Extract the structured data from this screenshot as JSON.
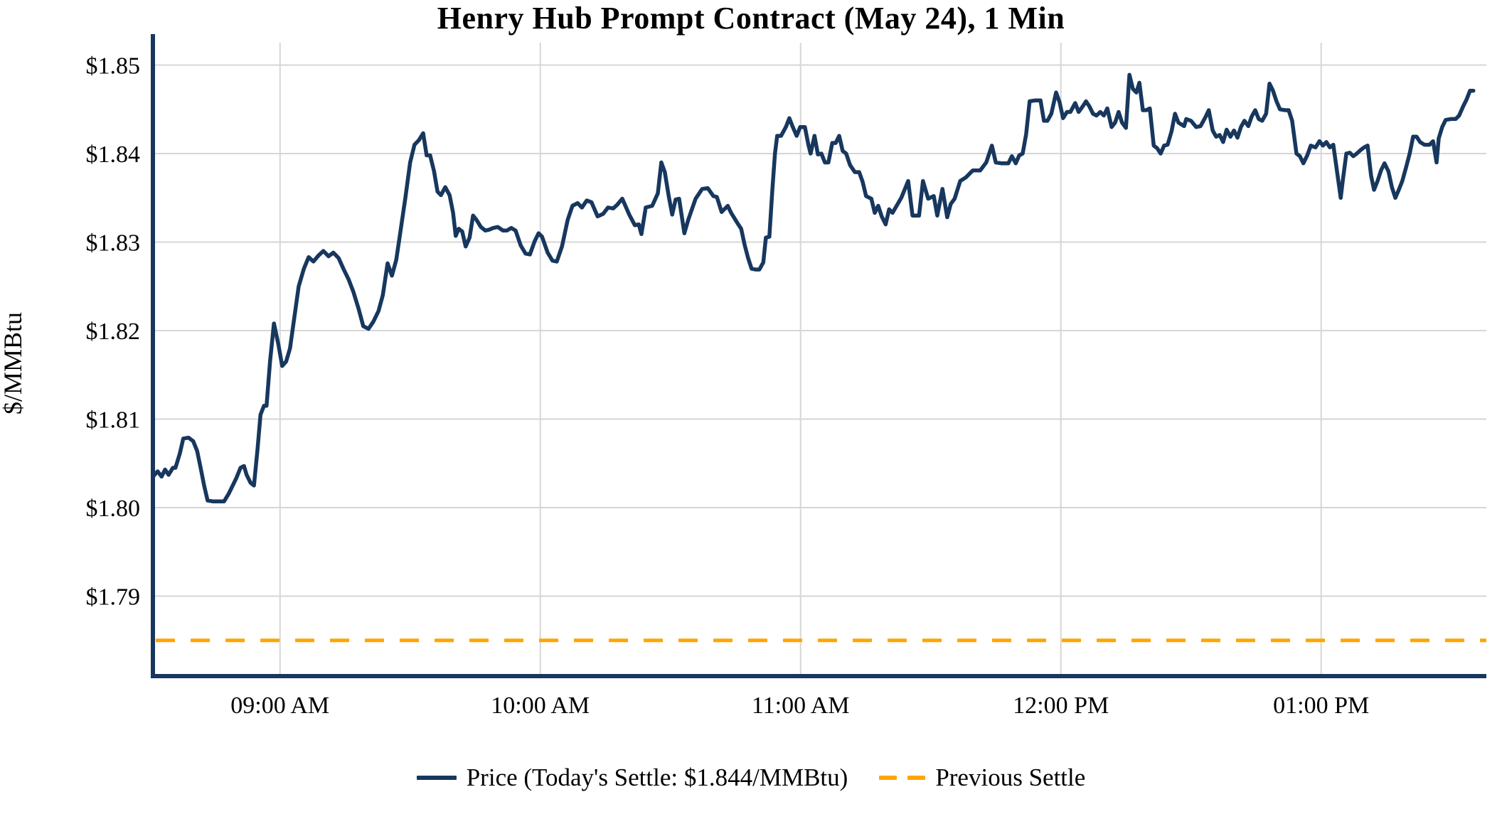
{
  "title": "Henry Hub Prompt Contract (May 24), 1 Min",
  "legend": {
    "price_label": "Price (Today's Settle: $1.844/MMBtu)",
    "previous_settle_label": "Previous Settle"
  },
  "colors": {
    "price_line": "#17375e",
    "previous_settle_line": "#ffa500",
    "grid": "#d6d6d6",
    "axis_spine": "#17375e",
    "text": "#000000"
  },
  "todays_settle_value": 1.844,
  "previous_settle_value": 1.785,
  "chart_data": {
    "type": "line",
    "title": "Henry Hub Prompt Contract (May 24), 1 Min",
    "xlabel": "",
    "ylabel": "$/MMBtu",
    "ylim": [
      1.781,
      1.8525
    ],
    "x_domain_minutes": [
      0,
      304.4
    ],
    "grid": true,
    "legend_position": "bottom-center",
    "y_axis": {
      "ticks": [
        {
          "label": "$1.79",
          "value": 1.79
        },
        {
          "label": "$1.80",
          "value": 1.8
        },
        {
          "label": "$1.81",
          "value": 1.81
        },
        {
          "label": "$1.82",
          "value": 1.82
        },
        {
          "label": "$1.83",
          "value": 1.83
        },
        {
          "label": "$1.84",
          "value": 1.84
        },
        {
          "label": "$1.85",
          "value": 1.85
        }
      ]
    },
    "x_axis": {
      "ticks": [
        {
          "label": "09:00 AM",
          "minute": 29.3
        },
        {
          "label": "10:00 AM",
          "minute": 89.3
        },
        {
          "label": "11:00 AM",
          "minute": 149.3
        },
        {
          "label": "12:00 PM",
          "minute": 209.3
        },
        {
          "label": "01:00 PM",
          "minute": 269.3
        }
      ],
      "start_time": "08:31 AM",
      "end_time": "01:35 PM"
    },
    "series": [
      {
        "name": "Price",
        "x_minutes": [
          0,
          1.1,
          2,
          2.8,
          3.6,
          4.6,
          5.2,
          6.2,
          7,
          8.2,
          9.3,
          10.2,
          11,
          11.8,
          12.6,
          13.9,
          15.2,
          16.4,
          17.5,
          19.2,
          20.2,
          21,
          21.6,
          22.5,
          23.3,
          24.1,
          24.8,
          25.6,
          26.2,
          27,
          27.9,
          28.9,
          29.8,
          30.7,
          31.6,
          32.6,
          33.6,
          34.8,
          35.9,
          37,
          38.2,
          39.3,
          40.5,
          41.6,
          42.8,
          43.9,
          45.1,
          46.2,
          47.4,
          48.5,
          49.7,
          50.8,
          52,
          53,
          54.1,
          55.1,
          56.1,
          57,
          58.2,
          59.3,
          60.3,
          61.3,
          62.3,
          63.1,
          63.9,
          64.8,
          65.6,
          66.4,
          67.4,
          68.4,
          69.2,
          69.8,
          70.5,
          71.3,
          72.1,
          73,
          73.8,
          74.6,
          75.6,
          76.6,
          77.5,
          78.5,
          79.5,
          80.7,
          81.6,
          82.6,
          83.6,
          84.8,
          85.9,
          86.9,
          88,
          88.9,
          89.7,
          91,
          92.1,
          93.1,
          94.3,
          95.6,
          96.7,
          97.9,
          98.9,
          100,
          101.1,
          102.5,
          103.8,
          104.9,
          106.1,
          107,
          108.2,
          109.8,
          111.1,
          112,
          112.6,
          113.6,
          115.1,
          116.4,
          117.2,
          118,
          118.9,
          119.7,
          120.5,
          121.3,
          122.5,
          123.4,
          125.1,
          126.6,
          127.9,
          129.2,
          130,
          131.1,
          132.5,
          133.3,
          134.8,
          135.6,
          136.4,
          137.2,
          138,
          138.9,
          139.8,
          140.7,
          141.3,
          142.1,
          142.8,
          143.4,
          143.9,
          144.8,
          145.9,
          146.7,
          147.5,
          148.4,
          149.2,
          150.3,
          151.1,
          151.6,
          152.5,
          153.3,
          154.1,
          154.9,
          155.7,
          156.6,
          157.4,
          158.2,
          159,
          159.8,
          160.7,
          161.8,
          162.8,
          163.6,
          164.4,
          165.6,
          166.4,
          167.2,
          168,
          168.9,
          169.7,
          170.5,
          172.5,
          174.1,
          175.1,
          176.6,
          177.5,
          178.7,
          180,
          180.8,
          182,
          183.1,
          183.9,
          184.8,
          186.1,
          187.4,
          189,
          190.7,
          192.1,
          193.4,
          194.3,
          195.6,
          197.2,
          198,
          198.9,
          199.7,
          200.5,
          201.3,
          202.1,
          203.3,
          204.6,
          205.4,
          206.2,
          207.1,
          208.2,
          209,
          209.8,
          210.7,
          211.5,
          212.6,
          213.4,
          214.3,
          215.1,
          215.9,
          216.7,
          217.5,
          218.4,
          219.2,
          220,
          221,
          221.8,
          222.6,
          223.4,
          224.3,
          225.1,
          225.9,
          226.7,
          227.4,
          228.2,
          229,
          229.8,
          230.7,
          231.5,
          232.3,
          233.1,
          233.9,
          234.8,
          235.6,
          236.4,
          237.7,
          238.2,
          239.3,
          240.5,
          241.5,
          242.6,
          243.4,
          244.3,
          245.1,
          245.9,
          246.7,
          247.5,
          248.4,
          249.2,
          250,
          250.8,
          251.6,
          252.5,
          253.3,
          254.1,
          254.9,
          255.7,
          256.6,
          257.4,
          258.2,
          259,
          259.8,
          261,
          261.8,
          262.6,
          263.6,
          264.4,
          265.2,
          266.1,
          266.9,
          268,
          268.9,
          269.7,
          270.5,
          271.3,
          272.1,
          273.8,
          274.3,
          275.1,
          275.9,
          276.7,
          277.5,
          278.4,
          279.2,
          280,
          280.8,
          281.5,
          282.3,
          283.1,
          283.9,
          284.8,
          285.6,
          286.4,
          287.2,
          288,
          288.9,
          289.7,
          290.5,
          291.3,
          292.1,
          293.1,
          294.3,
          295.1,
          295.9,
          296.4,
          297.2,
          298,
          299.2,
          300.3,
          301.1,
          302,
          302.8,
          303.6,
          304.4
        ],
        "values": [
          1.8035,
          1.8041,
          1.8035,
          1.8043,
          1.8037,
          1.8045,
          1.8045,
          1.8061,
          1.8078,
          1.8079,
          1.8075,
          1.8064,
          1.8045,
          1.8025,
          1.8008,
          1.8007,
          1.8007,
          1.8007,
          1.8016,
          1.8033,
          1.8045,
          1.8047,
          1.8037,
          1.8028,
          1.8025,
          1.8065,
          1.8105,
          1.8115,
          1.8115,
          1.8165,
          1.8208,
          1.8185,
          1.816,
          1.8165,
          1.818,
          1.8215,
          1.825,
          1.827,
          1.8283,
          1.8278,
          1.8285,
          1.829,
          1.8284,
          1.8288,
          1.8282,
          1.827,
          1.8258,
          1.8244,
          1.8225,
          1.8205,
          1.8202,
          1.821,
          1.8222,
          1.824,
          1.8276,
          1.8262,
          1.828,
          1.831,
          1.835,
          1.839,
          1.841,
          1.8415,
          1.8423,
          1.8398,
          1.8398,
          1.838,
          1.8357,
          1.8353,
          1.8362,
          1.8353,
          1.8333,
          1.8307,
          1.8315,
          1.8312,
          1.8295,
          1.8305,
          1.833,
          1.8325,
          1.8317,
          1.8313,
          1.8314,
          1.8316,
          1.8317,
          1.8313,
          1.8313,
          1.8316,
          1.8313,
          1.8296,
          1.8287,
          1.8286,
          1.8301,
          1.831,
          1.8306,
          1.8288,
          1.8279,
          1.8278,
          1.8295,
          1.8325,
          1.8341,
          1.8344,
          1.8339,
          1.8347,
          1.8345,
          1.8329,
          1.8332,
          1.8339,
          1.8338,
          1.8342,
          1.8349,
          1.8331,
          1.8319,
          1.832,
          1.8309,
          1.8339,
          1.8341,
          1.8355,
          1.839,
          1.8379,
          1.8352,
          1.8331,
          1.8348,
          1.8349,
          1.831,
          1.8325,
          1.8349,
          1.836,
          1.8361,
          1.8352,
          1.8351,
          1.8334,
          1.8341,
          1.8333,
          1.8321,
          1.8315,
          1.8297,
          1.8282,
          1.827,
          1.8269,
          1.8269,
          1.8277,
          1.8305,
          1.8306,
          1.836,
          1.84,
          1.842,
          1.842,
          1.843,
          1.844,
          1.843,
          1.842,
          1.843,
          1.843,
          1.841,
          1.84,
          1.842,
          1.8399,
          1.84,
          1.839,
          1.839,
          1.8412,
          1.8412,
          1.842,
          1.8403,
          1.84,
          1.8387,
          1.8379,
          1.8379,
          1.8368,
          1.8352,
          1.8349,
          1.8333,
          1.8341,
          1.8329,
          1.832,
          1.8337,
          1.8333,
          1.835,
          1.8369,
          1.833,
          1.833,
          1.8369,
          1.8349,
          1.8352,
          1.833,
          1.836,
          1.8328,
          1.8343,
          1.8349,
          1.8369,
          1.8373,
          1.8381,
          1.8381,
          1.839,
          1.8409,
          1.839,
          1.8389,
          1.8389,
          1.8397,
          1.8389,
          1.8398,
          1.84,
          1.8422,
          1.8459,
          1.846,
          1.846,
          1.8437,
          1.8437,
          1.8445,
          1.8469,
          1.8458,
          1.844,
          1.8447,
          1.8447,
          1.8457,
          1.8447,
          1.8453,
          1.8459,
          1.8453,
          1.8445,
          1.8443,
          1.8447,
          1.8443,
          1.8451,
          1.843,
          1.8435,
          1.8447,
          1.8435,
          1.8429,
          1.8489,
          1.8473,
          1.8469,
          1.848,
          1.8449,
          1.8449,
          1.8451,
          1.8409,
          1.8406,
          1.84,
          1.8409,
          1.841,
          1.8425,
          1.8445,
          1.8435,
          1.8431,
          1.8439,
          1.8437,
          1.843,
          1.8431,
          1.8441,
          1.8449,
          1.8426,
          1.8419,
          1.8421,
          1.8413,
          1.8427,
          1.8419,
          1.8426,
          1.8418,
          1.843,
          1.8437,
          1.8431,
          1.8442,
          1.8449,
          1.8439,
          1.8437,
          1.8445,
          1.8479,
          1.8471,
          1.8459,
          1.845,
          1.8449,
          1.8449,
          1.8437,
          1.84,
          1.8397,
          1.8389,
          1.8398,
          1.8409,
          1.8407,
          1.8414,
          1.8409,
          1.8413,
          1.8407,
          1.841,
          1.835,
          1.837,
          1.84,
          1.8401,
          1.8397,
          1.84,
          1.8404,
          1.8407,
          1.8409,
          1.8375,
          1.8359,
          1.8369,
          1.8381,
          1.8389,
          1.838,
          1.8362,
          1.835,
          1.8359,
          1.8369,
          1.8385,
          1.84,
          1.8419,
          1.8419,
          1.8413,
          1.841,
          1.841,
          1.8414,
          1.839,
          1.8417,
          1.843,
          1.8438,
          1.8439,
          1.8439,
          1.8443,
          1.8453,
          1.8461,
          1.8471,
          1.8471
        ]
      },
      {
        "name": "Previous Settle",
        "style": "dashed",
        "constant_value": 1.785
      }
    ]
  }
}
